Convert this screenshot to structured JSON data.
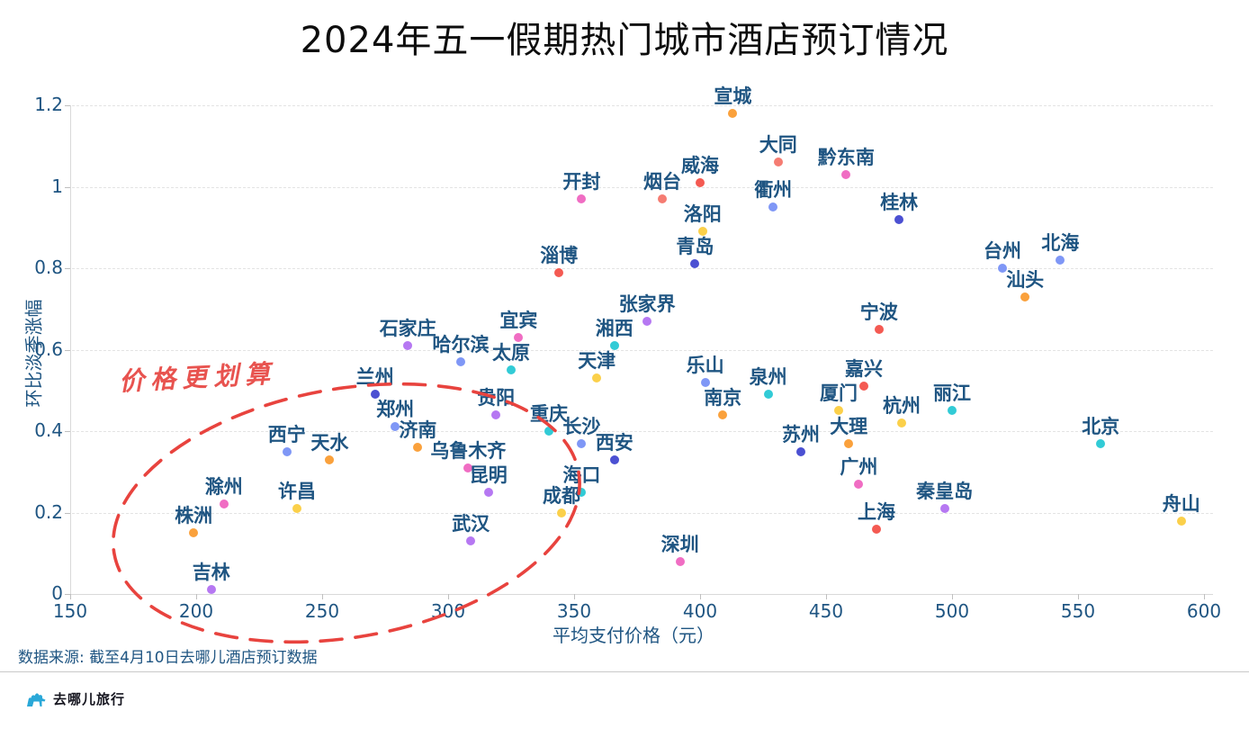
{
  "title": "2024年五一假期热门城市酒店预订情况",
  "source_note": "数据来源: 截至4月10日去哪儿酒店预订数据",
  "logo_text": "去哪儿旅行",
  "annotation": {
    "text": "价格更划算",
    "color": "#e8534f"
  },
  "highlight_ellipse_color": "#e8433e",
  "colors": {
    "orange": "#faa13c",
    "salmon": "#f57c72",
    "red": "#f45a52",
    "pink": "#f06dc3",
    "periwinkle": "#7f97f6",
    "indigo": "#4b50d2",
    "cyan": "#32cbd6",
    "yellow": "#fbd04a",
    "purple": "#b678f2"
  },
  "chart_data": {
    "type": "scatter",
    "title": "2024年五一假期热门城市酒店预订情况",
    "xlabel": "平均支付价格（元）",
    "ylabel": "环比淡季涨幅",
    "xlim": [
      150,
      600
    ],
    "ylim": [
      0,
      1.2
    ],
    "x_ticks": [
      150,
      200,
      250,
      300,
      350,
      400,
      450,
      500,
      550,
      600
    ],
    "y_ticks": [
      0,
      0.2,
      0.4,
      0.6,
      0.8,
      1,
      1.2
    ],
    "grid": "horizontal-dashed",
    "legend": "none",
    "points": [
      {
        "city": "宣城",
        "x": 413,
        "y": 1.18,
        "color": "#faa13c"
      },
      {
        "city": "大同",
        "x": 431,
        "y": 1.06,
        "color": "#f57c72"
      },
      {
        "city": "黔东南",
        "x": 458,
        "y": 1.03,
        "color": "#f06dc3"
      },
      {
        "city": "威海",
        "x": 400,
        "y": 1.01,
        "color": "#f45a52"
      },
      {
        "city": "开封",
        "x": 353,
        "y": 0.97,
        "color": "#f06dc3"
      },
      {
        "city": "烟台",
        "x": 385,
        "y": 0.97,
        "color": "#f57c72"
      },
      {
        "city": "衢州",
        "x": 429,
        "y": 0.95,
        "color": "#7f97f6"
      },
      {
        "city": "桂林",
        "x": 479,
        "y": 0.92,
        "color": "#4b50d2"
      },
      {
        "city": "洛阳",
        "x": 401,
        "y": 0.89,
        "color": "#fbd04a"
      },
      {
        "city": "北海",
        "x": 543,
        "y": 0.82,
        "color": "#7f97f6"
      },
      {
        "city": "青岛",
        "x": 398,
        "y": 0.81,
        "color": "#4b50d2"
      },
      {
        "city": "台州",
        "x": 520,
        "y": 0.8,
        "color": "#7f97f6"
      },
      {
        "city": "淄博",
        "x": 344,
        "y": 0.79,
        "color": "#f45a52"
      },
      {
        "city": "汕头",
        "x": 529,
        "y": 0.73,
        "color": "#faa13c"
      },
      {
        "city": "张家界",
        "x": 379,
        "y": 0.67,
        "color": "#b678f2"
      },
      {
        "city": "宁波",
        "x": 471,
        "y": 0.65,
        "color": "#f45a52"
      },
      {
        "city": "宜宾",
        "x": 328,
        "y": 0.63,
        "color": "#f06dc3"
      },
      {
        "city": "湘西",
        "x": 366,
        "y": 0.61,
        "color": "#32cbd6"
      },
      {
        "city": "石家庄",
        "x": 284,
        "y": 0.61,
        "color": "#b678f2"
      },
      {
        "city": "哈尔滨",
        "x": 305,
        "y": 0.57,
        "color": "#7f97f6"
      },
      {
        "city": "太原",
        "x": 325,
        "y": 0.55,
        "color": "#32cbd6"
      },
      {
        "city": "天津",
        "x": 359,
        "y": 0.53,
        "color": "#fbd04a"
      },
      {
        "city": "乐山",
        "x": 402,
        "y": 0.52,
        "color": "#7f97f6"
      },
      {
        "city": "嘉兴",
        "x": 465,
        "y": 0.51,
        "color": "#f45a52"
      },
      {
        "city": "兰州",
        "x": 271,
        "y": 0.49,
        "color": "#4b50d2"
      },
      {
        "city": "泉州",
        "x": 427,
        "y": 0.49,
        "color": "#32cbd6"
      },
      {
        "city": "丽江",
        "x": 500,
        "y": 0.45,
        "color": "#32cbd6"
      },
      {
        "city": "厦门",
        "x": 455,
        "y": 0.45,
        "color": "#fbd04a"
      },
      {
        "city": "南京",
        "x": 409,
        "y": 0.44,
        "color": "#faa13c"
      },
      {
        "city": "贵阳",
        "x": 319,
        "y": 0.44,
        "color": "#b678f2"
      },
      {
        "city": "杭州",
        "x": 480,
        "y": 0.42,
        "color": "#fbd04a"
      },
      {
        "city": "郑州",
        "x": 279,
        "y": 0.41,
        "color": "#7f97f6"
      },
      {
        "city": "重庆",
        "x": 340,
        "y": 0.4,
        "color": "#32cbd6"
      },
      {
        "city": "大理",
        "x": 459,
        "y": 0.37,
        "color": "#faa13c"
      },
      {
        "city": "长沙",
        "x": 353,
        "y": 0.37,
        "color": "#7f97f6"
      },
      {
        "city": "北京",
        "x": 559,
        "y": 0.37,
        "color": "#32cbd6"
      },
      {
        "city": "济南",
        "x": 288,
        "y": 0.36,
        "color": "#faa13c"
      },
      {
        "city": "西宁",
        "x": 236,
        "y": 0.35,
        "color": "#7f97f6"
      },
      {
        "city": "苏州",
        "x": 440,
        "y": 0.35,
        "color": "#4b50d2"
      },
      {
        "city": "天水",
        "x": 253,
        "y": 0.33,
        "color": "#faa13c"
      },
      {
        "city": "西安",
        "x": 366,
        "y": 0.33,
        "color": "#4b50d2"
      },
      {
        "city": "乌鲁木齐",
        "x": 308,
        "y": 0.31,
        "color": "#f06dc3"
      },
      {
        "city": "广州",
        "x": 463,
        "y": 0.27,
        "color": "#f06dc3"
      },
      {
        "city": "昆明",
        "x": 316,
        "y": 0.25,
        "color": "#b678f2"
      },
      {
        "city": "海口",
        "x": 353,
        "y": 0.25,
        "color": "#32cbd6"
      },
      {
        "city": "滁州",
        "x": 211,
        "y": 0.22,
        "color": "#f06dc3"
      },
      {
        "city": "秦皇岛",
        "x": 497,
        "y": 0.21,
        "color": "#b678f2"
      },
      {
        "city": "许昌",
        "x": 240,
        "y": 0.21,
        "color": "#fbd04a"
      },
      {
        "city": "成都",
        "x": 345,
        "y": 0.2,
        "color": "#fbd04a"
      },
      {
        "city": "舟山",
        "x": 591,
        "y": 0.18,
        "color": "#fbd04a"
      },
      {
        "city": "上海",
        "x": 470,
        "y": 0.16,
        "color": "#f45a52"
      },
      {
        "city": "株洲",
        "x": 199,
        "y": 0.15,
        "color": "#faa13c"
      },
      {
        "city": "武汉",
        "x": 309,
        "y": 0.13,
        "color": "#b678f2"
      },
      {
        "city": "深圳",
        "x": 392,
        "y": 0.08,
        "color": "#f06dc3"
      },
      {
        "city": "吉林",
        "x": 206,
        "y": 0.01,
        "color": "#b678f2"
      }
    ]
  }
}
